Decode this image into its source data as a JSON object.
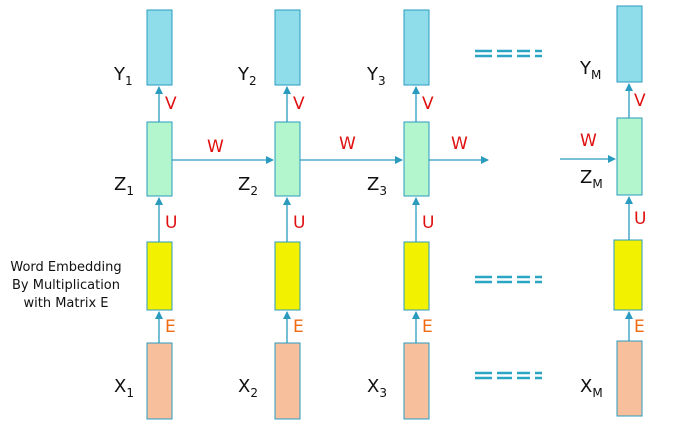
{
  "columns": [
    {
      "y_label": "Y",
      "y_sub": "1",
      "z_label": "Z",
      "z_sub": "1",
      "x_label": "X",
      "x_sub": "1"
    },
    {
      "y_label": "Y",
      "y_sub": "2",
      "z_label": "Z",
      "z_sub": "2",
      "x_label": "X",
      "x_sub": "2"
    },
    {
      "y_label": "Y",
      "y_sub": "3",
      "z_label": "Z",
      "z_sub": "3",
      "x_label": "X",
      "x_sub": "3"
    },
    {
      "y_label": "Y",
      "y_sub": "M",
      "z_label": "Z",
      "z_sub": "M",
      "x_label": "X",
      "x_sub": "M"
    }
  ],
  "weights": {
    "v": "V",
    "u": "U",
    "e": "E",
    "w": "W"
  },
  "embedding_caption": [
    "Word Embedding",
    "By Multiplication",
    "with Matrix E"
  ],
  "colors": {
    "output_box": "#8fdcea",
    "hidden_box": "#b3f5cc",
    "embedding_box": "#f2f200",
    "input_box": "#f8bf9c",
    "arrow": "#2a9bbf",
    "v_u_weight": "#e01010",
    "e_weight": "#f06a10",
    "dash": "#2aa6c4"
  }
}
